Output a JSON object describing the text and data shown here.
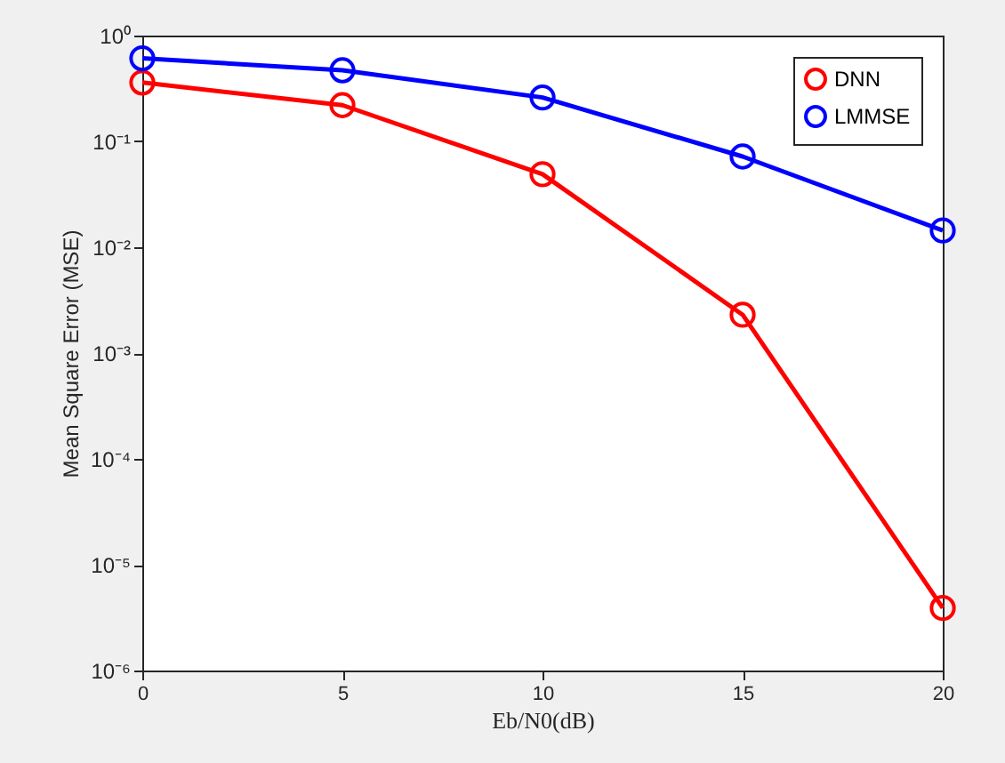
{
  "chart_data": {
    "type": "line",
    "xlabel": "Eb/N0(dB)",
    "ylabel": "Mean Square Error (MSE)",
    "x": [
      0,
      5,
      10,
      15,
      20
    ],
    "series": [
      {
        "name": "DNN",
        "color": "#ff0000",
        "values": [
          0.36,
          0.22,
          0.049,
          0.0023,
          3.9e-06
        ]
      },
      {
        "name": "LMMSE",
        "color": "#0000ff",
        "values": [
          0.61,
          0.47,
          0.26,
          0.072,
          0.0144
        ]
      }
    ],
    "xlim": [
      0,
      20
    ],
    "xticks": [
      0,
      5,
      10,
      15,
      20
    ],
    "ylim": [
      1e-06,
      1
    ],
    "yticks": [
      {
        "value": 1e-06,
        "label": "10⁻⁶"
      },
      {
        "value": 1e-05,
        "label": "10⁻⁵"
      },
      {
        "value": 0.0001,
        "label": "10⁻⁴"
      },
      {
        "value": 0.001,
        "label": "10⁻³"
      },
      {
        "value": 0.01,
        "label": "10⁻²"
      },
      {
        "value": 0.1,
        "label": "10⁻¹"
      },
      {
        "value": 1,
        "label": "10⁰"
      }
    ],
    "log": true,
    "legend": "top right",
    "marker": "circle"
  }
}
